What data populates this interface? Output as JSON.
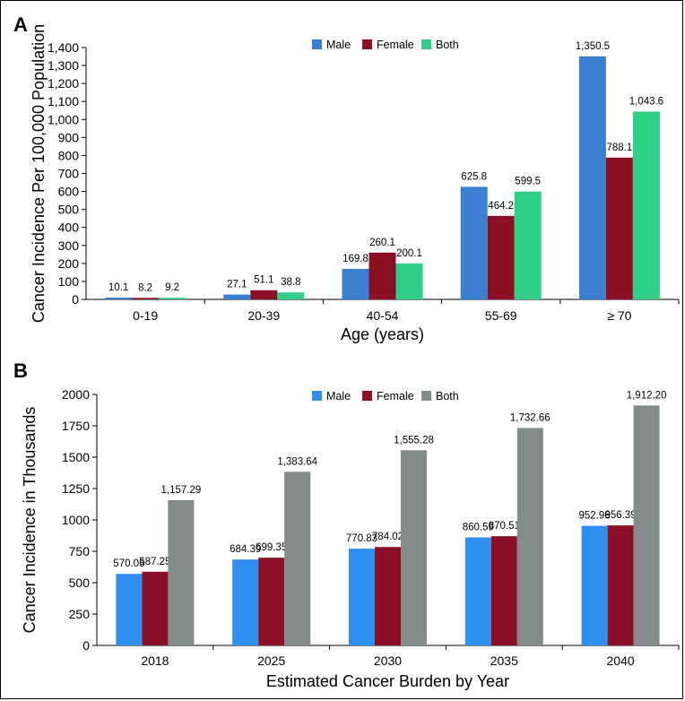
{
  "chart_data": [
    {
      "panel": "A",
      "type": "bar",
      "categories": [
        "0-19",
        "20-39",
        "40-54",
        "55-69",
        "≥ 70"
      ],
      "series": [
        {
          "name": "Male",
          "color": "#3a7fd0",
          "values": [
            10.1,
            27.1,
            169.8,
            625.8,
            1350.5
          ],
          "labels": [
            "10.1",
            "27.1",
            "169.8",
            "625.8",
            "1,350.5"
          ]
        },
        {
          "name": "Female",
          "color": "#8b1024",
          "values": [
            8.2,
            51.1,
            260.1,
            464.2,
            788.1
          ],
          "labels": [
            "8.2",
            "51.1",
            "260.1",
            "464.2",
            "788.1"
          ]
        },
        {
          "name": "Both",
          "color": "#2fcf85",
          "values": [
            9.2,
            38.8,
            200.1,
            599.5,
            1043.6
          ],
          "labels": [
            "9.2",
            "38.8",
            "200.1",
            "599.5",
            "1,043.6"
          ]
        }
      ],
      "xlabel": "Age (years)",
      "ylabel": "Cancer Incidence Per 100,000 Population",
      "ylim": [
        0,
        1400
      ],
      "yticks": [
        "0",
        "100",
        "200",
        "300",
        "400",
        "500",
        "600",
        "700",
        "800",
        "900",
        "1,000",
        "1,100",
        "1,200",
        "1,300",
        "1,400"
      ],
      "ytick_values": [
        0,
        100,
        200,
        300,
        400,
        500,
        600,
        700,
        800,
        900,
        1000,
        1100,
        1200,
        1300,
        1400
      ],
      "grid": false,
      "legend": "top-center"
    },
    {
      "panel": "B",
      "type": "bar",
      "categories": [
        "2018",
        "2025",
        "2030",
        "2035",
        "2040"
      ],
      "series": [
        {
          "name": "Male",
          "color": "#2f8ff0",
          "values": [
            570.05,
            684.39,
            770.83,
            860.59,
            952.96
          ],
          "labels": [
            "570.05",
            "684.39",
            "770.83",
            "860.59",
            "952.96"
          ]
        },
        {
          "name": "Female",
          "color": "#8b0f26",
          "values": [
            587.25,
            699.35,
            784.02,
            870.51,
            956.39
          ],
          "labels": [
            "587.25",
            "699.35",
            "784.02",
            "870.51",
            "956.39"
          ]
        },
        {
          "name": "Both",
          "color": "#838c8b",
          "values": [
            1157.29,
            1383.64,
            1555.28,
            1732.66,
            1912.2
          ],
          "labels": [
            "1,157.29",
            "1,383.64",
            "1,555.28",
            "1,732.66",
            "1,912.20"
          ]
        }
      ],
      "xlabel": "Estimated Cancer Burden by Year",
      "ylabel": "Cancer Incidence in Thousands",
      "ylim": [
        0,
        2000
      ],
      "yticks": [
        "0",
        "250",
        "500",
        "750",
        "1000",
        "1250",
        "1500",
        "1750",
        "2000"
      ],
      "ytick_values": [
        0,
        250,
        500,
        750,
        1000,
        1250,
        1500,
        1750,
        2000
      ],
      "grid": false,
      "legend": "top-center"
    }
  ]
}
